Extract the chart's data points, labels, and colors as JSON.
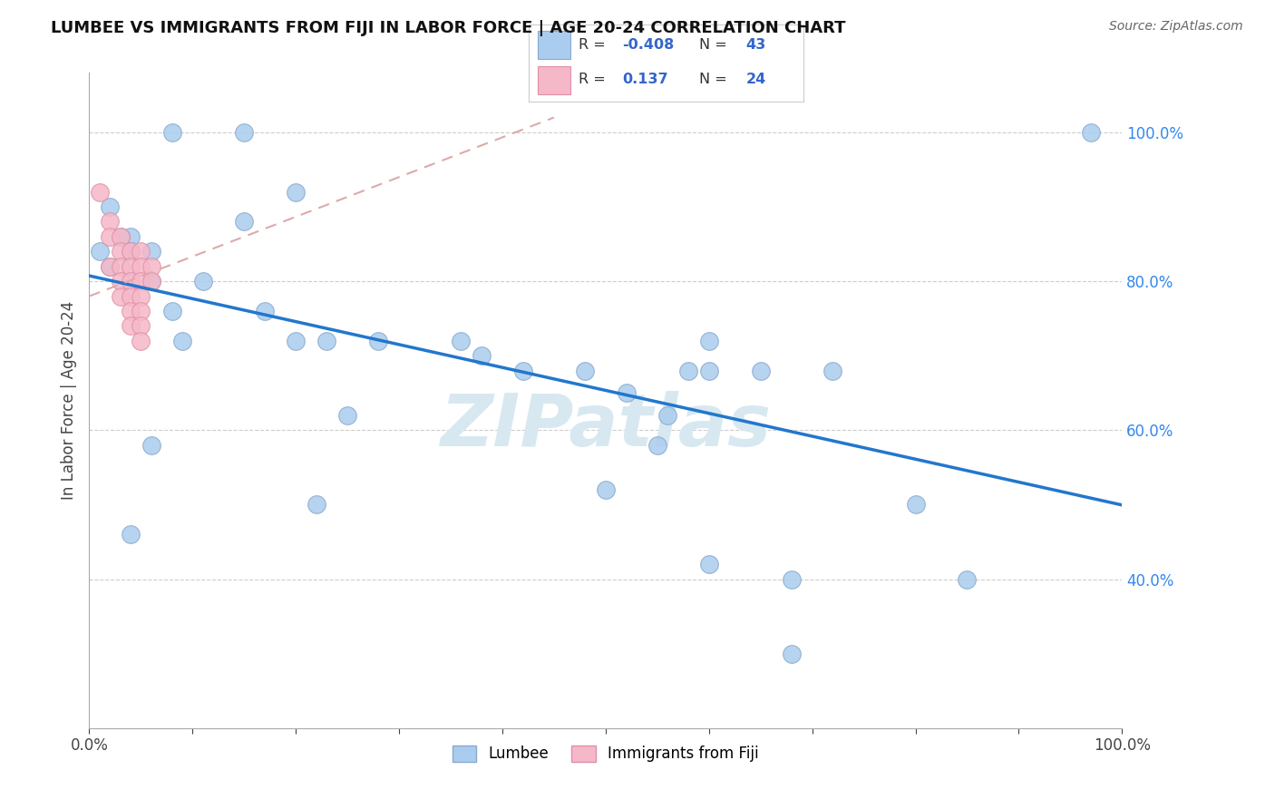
{
  "title": "LUMBEE VS IMMIGRANTS FROM FIJI IN LABOR FORCE | AGE 20-24 CORRELATION CHART",
  "source_text": "Source: ZipAtlas.com",
  "ylabel": "In Labor Force | Age 20-24",
  "xlim": [
    0.0,
    1.0
  ],
  "ylim": [
    0.2,
    1.08
  ],
  "x_ticks": [
    0.0,
    0.1,
    0.2,
    0.3,
    0.4,
    0.5,
    0.6,
    0.7,
    0.8,
    0.9,
    1.0
  ],
  "x_tick_labels_show": [
    "0.0%",
    "",
    "",
    "",
    "",
    "",
    "",
    "",
    "",
    "",
    "100.0%"
  ],
  "y_ticks": [
    0.4,
    0.6,
    0.8,
    1.0
  ],
  "y_tick_labels": [
    "40.0%",
    "60.0%",
    "80.0%",
    "100.0%"
  ],
  "grid_color": "#c8c8c8",
  "background_color": "#ffffff",
  "lumbee_color": "#aaccee",
  "fiji_color": "#f5b8c8",
  "lumbee_edge_color": "#88aacc",
  "fiji_edge_color": "#e090a8",
  "lumbee_R": -0.408,
  "lumbee_N": 43,
  "fiji_R": 0.137,
  "fiji_N": 24,
  "lumbee_line_color": "#2277cc",
  "fiji_line_color": "#ddaaaa",
  "legend_R_color": "#3366cc",
  "watermark_color": "#d8e8f0",
  "lumbee_scatter_x": [
    0.08,
    0.15,
    0.2,
    0.04,
    0.02,
    0.03,
    0.04,
    0.01,
    0.02,
    0.04,
    0.06,
    0.06,
    0.08,
    0.11,
    0.17,
    0.2,
    0.23,
    0.28,
    0.15,
    0.42,
    0.48,
    0.52,
    0.56,
    0.58,
    0.38,
    0.36,
    0.6,
    0.65,
    0.68,
    0.5,
    0.55,
    0.6,
    0.6,
    0.68,
    0.72,
    0.8,
    0.85,
    0.22,
    0.25,
    0.06,
    0.09,
    0.04,
    0.97
  ],
  "lumbee_scatter_y": [
    1.0,
    1.0,
    0.92,
    0.86,
    0.9,
    0.86,
    0.84,
    0.84,
    0.82,
    0.84,
    0.84,
    0.8,
    0.76,
    0.8,
    0.76,
    0.72,
    0.72,
    0.72,
    0.88,
    0.68,
    0.68,
    0.65,
    0.62,
    0.68,
    0.7,
    0.72,
    0.72,
    0.68,
    0.4,
    0.52,
    0.58,
    0.68,
    0.42,
    0.3,
    0.68,
    0.5,
    0.4,
    0.5,
    0.62,
    0.58,
    0.72,
    0.46,
    1.0
  ],
  "fiji_scatter_x": [
    0.01,
    0.02,
    0.02,
    0.02,
    0.03,
    0.03,
    0.03,
    0.03,
    0.03,
    0.04,
    0.04,
    0.04,
    0.04,
    0.04,
    0.04,
    0.05,
    0.05,
    0.05,
    0.05,
    0.05,
    0.05,
    0.05,
    0.06,
    0.06
  ],
  "fiji_scatter_y": [
    0.92,
    0.88,
    0.86,
    0.82,
    0.86,
    0.84,
    0.82,
    0.8,
    0.78,
    0.84,
    0.82,
    0.8,
    0.78,
    0.76,
    0.74,
    0.84,
    0.82,
    0.8,
    0.78,
    0.76,
    0.74,
    0.72,
    0.82,
    0.8
  ]
}
